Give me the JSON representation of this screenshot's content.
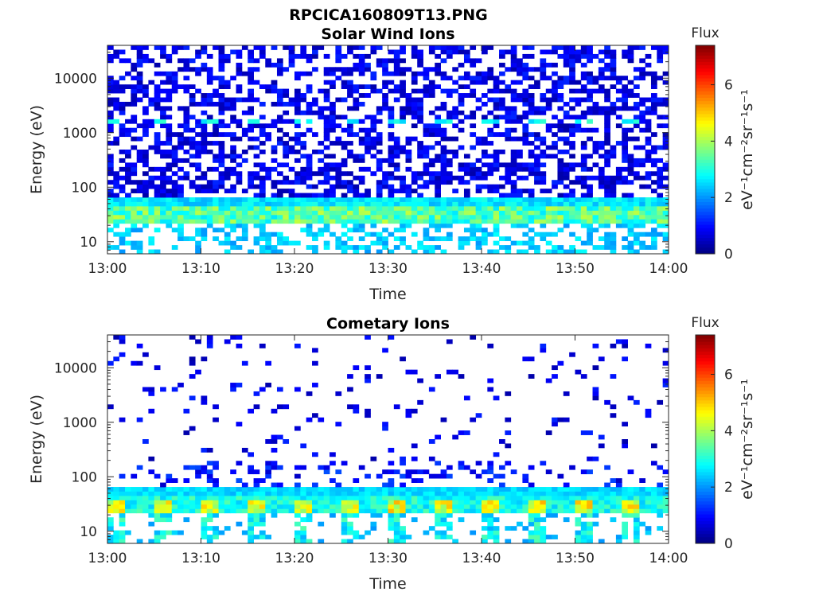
{
  "figure_title": "RPCICA160809T13.PNG",
  "chart_data": [
    {
      "type": "heatmap",
      "title": "Solar Wind Ions",
      "xlabel": "Time",
      "ylabel": "Energy (eV)",
      "x_range": [
        "13:00",
        "14:00"
      ],
      "x_ticks": [
        "13:00",
        "13:10",
        "13:20",
        "13:30",
        "13:40",
        "13:50",
        "14:00"
      ],
      "y_scale": "log",
      "y_range": [
        6,
        40000
      ],
      "y_ticks": [
        "10",
        "100",
        "1000",
        "10000"
      ],
      "colorbar": {
        "title": "Flux",
        "label": "eV⁻¹cm⁻²sr⁻¹s⁻¹",
        "range": [
          0,
          7.4
        ],
        "ticks": [
          "0",
          "2",
          "4",
          "6"
        ],
        "colormap": "jet"
      },
      "features": [
        {
          "energy_range_eV": [
            20,
            60
          ],
          "flux_level": 3.2,
          "note": "persistent dense band"
        },
        {
          "energy_range_eV": [
            1400,
            1800
          ],
          "flux_level": 2.6,
          "note": "intermittent band"
        },
        {
          "energy_range_eV": [
            6,
            20
          ],
          "flux_level": 2.3,
          "note": "sparse low-energy patches"
        },
        {
          "energy_range_eV": [
            60,
            40000
          ],
          "flux_level": 0.6,
          "note": "scattered low-flux background"
        }
      ]
    },
    {
      "type": "heatmap",
      "title": "Cometary Ions",
      "xlabel": "Time",
      "ylabel": "Energy (eV)",
      "x_range": [
        "13:00",
        "14:00"
      ],
      "x_ticks": [
        "13:00",
        "13:10",
        "13:20",
        "13:30",
        "13:40",
        "13:50",
        "14:00"
      ],
      "y_scale": "log",
      "y_range": [
        6,
        40000
      ],
      "y_ticks": [
        "10",
        "100",
        "1000",
        "10000"
      ],
      "colorbar": {
        "title": "Flux",
        "label": "eV⁻¹cm⁻²sr⁻¹s⁻¹",
        "range": [
          0,
          7.4
        ],
        "ticks": [
          "0",
          "2",
          "4",
          "6"
        ],
        "colormap": "jet"
      },
      "features": [
        {
          "energy_range_eV": [
            20,
            60
          ],
          "flux_level": 3.6,
          "note": "persistent dense band with periodic yellow peaks"
        },
        {
          "energy_range_eV": [
            6,
            20
          ],
          "flux_level": 2.4,
          "note": "periodic low-energy patches"
        },
        {
          "energy_range_eV": [
            60,
            40000
          ],
          "flux_level": 0.5,
          "note": "sparse isolated points"
        }
      ]
    }
  ]
}
